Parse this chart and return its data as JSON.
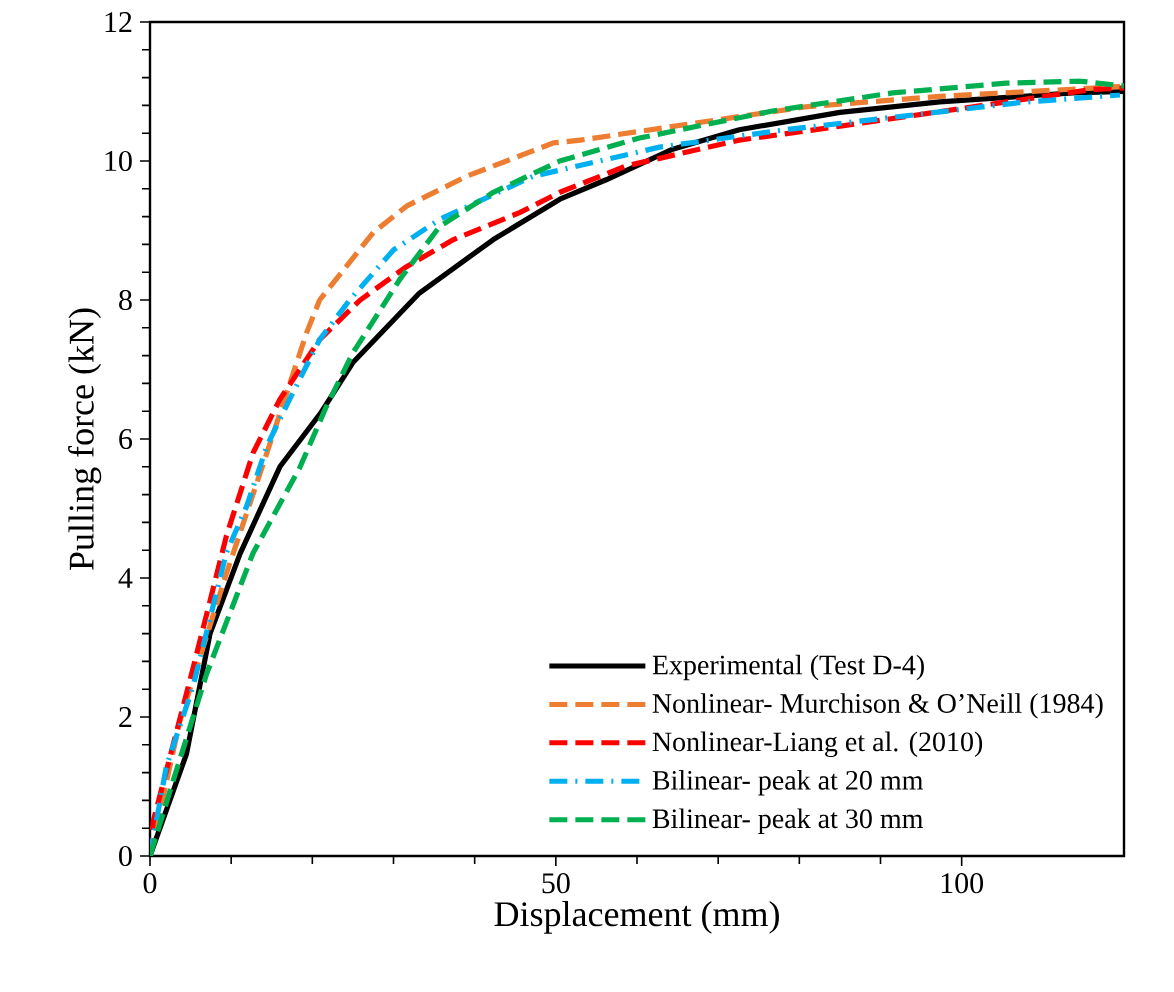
{
  "chart_data": {
    "type": "line",
    "xlabel": "Displacement (mm)",
    "ylabel": "Pulling force (kN)",
    "xlim": [
      0,
      120
    ],
    "xticks": [
      0,
      50,
      100
    ],
    "ylim": [
      0,
      12
    ],
    "yticks": [
      0,
      2,
      4,
      6,
      8,
      10,
      12
    ],
    "grid": false,
    "legend": "bottom right",
    "marker": "none",
    "series": [
      {
        "name": "Experimental (Test D-4)",
        "color": "#000000",
        "line_style": "solid",
        "x": [
          0,
          4.5,
          7.4,
          11.1,
          16,
          21,
          25,
          33.2,
          42.3,
          50.5,
          56.2,
          64.4,
          72.6,
          85,
          97.3,
          113.7,
          120
        ],
        "values": [
          0,
          1.47,
          3.2,
          4.35,
          5.6,
          6.37,
          7.1,
          8.1,
          8.87,
          9.45,
          9.73,
          10.17,
          10.45,
          10.7,
          10.85,
          10.98,
          11.0
        ]
      },
      {
        "name": "Nonlinear- Murchison & O’Neill (1984)",
        "color": "#ed7d31",
        "line_style": "dashed",
        "x": [
          0,
          3.7,
          9.4,
          14.4,
          19.3,
          20.9,
          27.5,
          31.6,
          39,
          49.7,
          53,
          80.8,
          97.3,
          119.5
        ],
        "values": [
          0,
          1.95,
          4.06,
          5.8,
          7.53,
          8.0,
          8.97,
          9.35,
          9.78,
          10.26,
          10.3,
          10.78,
          10.93,
          11.07
        ]
      },
      {
        "name": "Nonlinear-Liang et al. (2010)",
        "color": "#ff0000",
        "line_style": "dashed",
        "x": [
          0,
          0.4,
          5.3,
          9.4,
          12.7,
          16,
          20.9,
          25.9,
          31.6,
          37.4,
          45.6,
          50.5,
          58.7,
          72.6,
          85,
          101.4,
          116.1,
          120
        ],
        "values": [
          0,
          0.5,
          2.7,
          4.6,
          5.8,
          6.57,
          7.43,
          8.0,
          8.48,
          8.87,
          9.26,
          9.55,
          9.93,
          10.3,
          10.5,
          10.78,
          11.03,
          11.05
        ]
      },
      {
        "name": "Bilinear- peak at 20 mm",
        "color": "#00b0f0",
        "line_style": "dashdot",
        "x": [
          0,
          2.0,
          5.3,
          9.4,
          11.9,
          14.4,
          17.2,
          20.9,
          24.6,
          30,
          35.7,
          47.2,
          62.8,
          78.3,
          93.1,
          107.1,
          119.5
        ],
        "values": [
          0,
          1.28,
          2.44,
          4.36,
          5.03,
          5.9,
          6.57,
          7.43,
          8.0,
          8.72,
          9.16,
          9.78,
          10.2,
          10.45,
          10.65,
          10.84,
          10.95
        ]
      },
      {
        "name": "Bilinear- peak at 30 mm",
        "color": "#00b050",
        "line_style": "dashed",
        "x": [
          0,
          2.9,
          7,
          12.7,
          18.5,
          21.7,
          25,
          30.8,
          35.7,
          42.3,
          50.5,
          60.3,
          76.7,
          91.5,
          105.5,
          114.5,
          120
        ],
        "values": [
          0,
          1.1,
          2.63,
          4.36,
          5.6,
          6.46,
          7.24,
          8.3,
          9.06,
          9.55,
          10.0,
          10.33,
          10.72,
          10.98,
          11.12,
          11.15,
          11.08
        ]
      }
    ]
  }
}
